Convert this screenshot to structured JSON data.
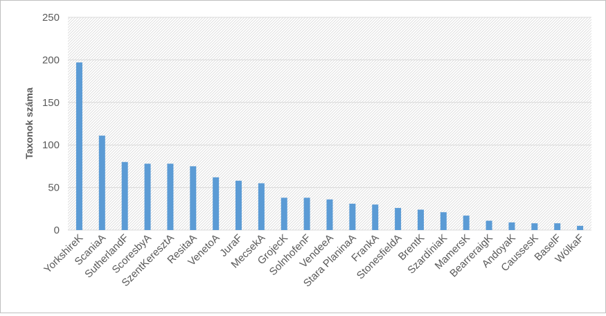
{
  "chart_data": {
    "type": "bar",
    "title": "",
    "xlabel": "",
    "ylabel": "Taxonok száma",
    "ylim": [
      0,
      250
    ],
    "yticks": [
      0,
      50,
      100,
      150,
      200,
      250
    ],
    "grid": true,
    "legend": "none",
    "bar_color": "#5b9bd5",
    "categories": [
      "YorkshireK",
      "ScaniaA",
      "SutherlandF",
      "ScoresbyA",
      "SzentKeresztA",
      "ResitaA",
      "VenetoA",
      "JuraF",
      "MecsekA",
      "GrojecK",
      "SolnhofenF",
      "VendeeA",
      "Stara PlaninaA",
      "FrankA",
      "StonesfieldA",
      "BrentK",
      "SzardíniaK",
      "MamersK",
      "BearreraigK",
      "AndoyaK",
      "CaussesK",
      "BaselF",
      "WólkaF"
    ],
    "values": [
      197,
      111,
      80,
      78,
      78,
      75,
      62,
      58,
      55,
      38,
      38,
      36,
      31,
      30,
      26,
      24,
      21,
      17,
      11,
      9,
      8,
      8,
      5
    ]
  }
}
